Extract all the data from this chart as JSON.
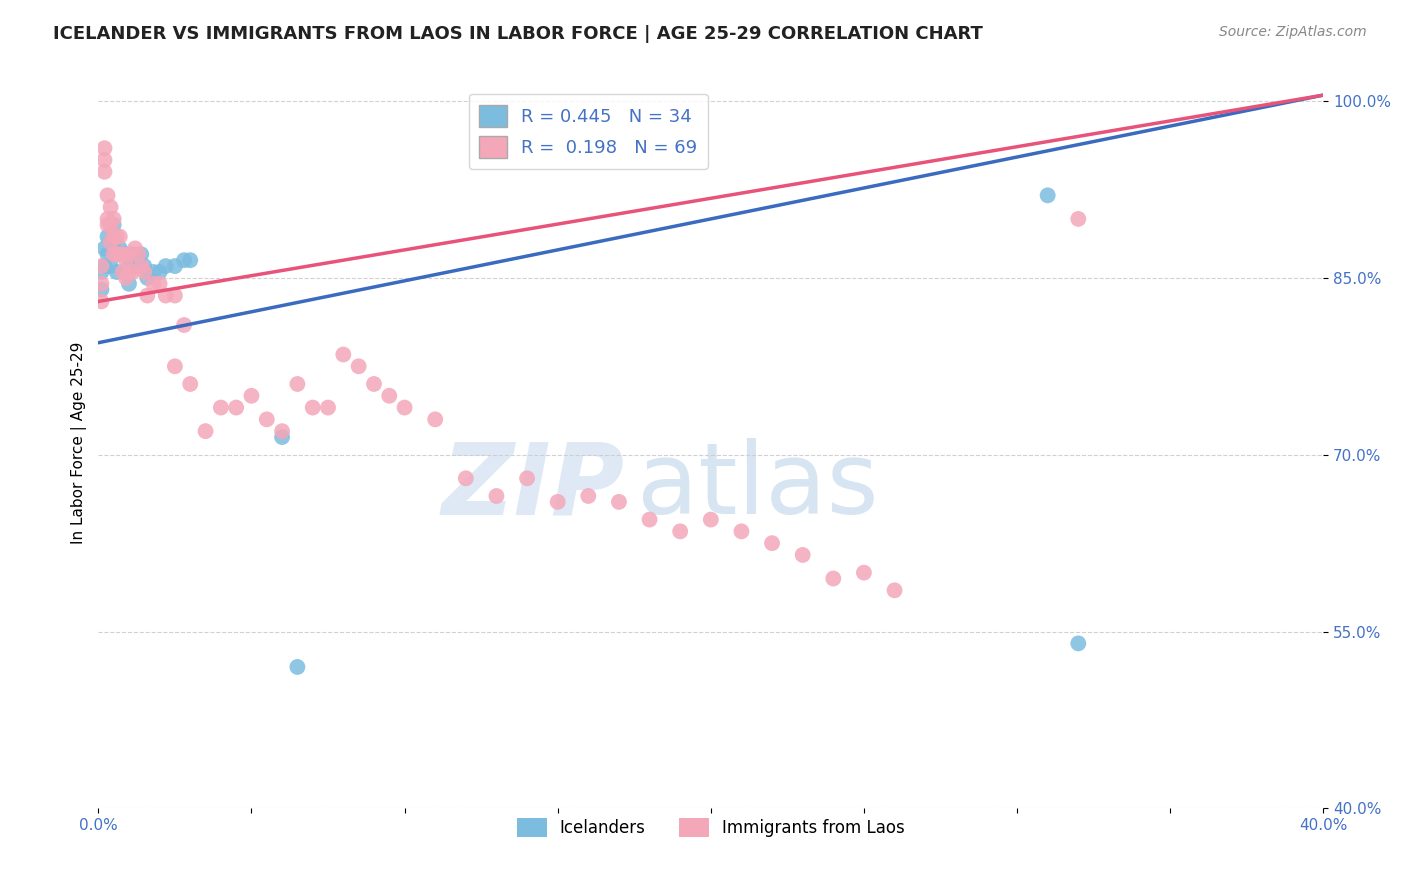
{
  "title": "ICELANDER VS IMMIGRANTS FROM LAOS IN LABOR FORCE | AGE 25-29 CORRELATION CHART",
  "source": "Source: ZipAtlas.com",
  "ylabel": "In Labor Force | Age 25-29",
  "xlim": [
    0.0,
    0.4
  ],
  "ylim": [
    0.4,
    1.02
  ],
  "yticks": [
    0.4,
    0.55,
    0.7,
    0.85,
    1.0
  ],
  "ytick_labels": [
    "40.0%",
    "55.0%",
    "70.0%",
    "85.0%",
    "100.0%"
  ],
  "xticks": [
    0.0,
    0.05,
    0.1,
    0.15,
    0.2,
    0.25,
    0.3,
    0.35,
    0.4
  ],
  "xtick_labels": [
    "0.0%",
    "",
    "",
    "",
    "",
    "",
    "",
    "",
    "40.0%"
  ],
  "icelanders": {
    "x": [
      0.001,
      0.001,
      0.002,
      0.002,
      0.003,
      0.003,
      0.004,
      0.004,
      0.005,
      0.005,
      0.006,
      0.006,
      0.007,
      0.008,
      0.008,
      0.009,
      0.01,
      0.01,
      0.011,
      0.012,
      0.013,
      0.014,
      0.015,
      0.016,
      0.018,
      0.02,
      0.022,
      0.025,
      0.028,
      0.03,
      0.06,
      0.065,
      0.31,
      0.32
    ],
    "y": [
      0.855,
      0.84,
      0.875,
      0.86,
      0.885,
      0.87,
      0.88,
      0.86,
      0.895,
      0.88,
      0.87,
      0.855,
      0.875,
      0.87,
      0.855,
      0.87,
      0.86,
      0.845,
      0.87,
      0.86,
      0.865,
      0.87,
      0.86,
      0.85,
      0.855,
      0.855,
      0.86,
      0.86,
      0.865,
      0.865,
      0.715,
      0.52,
      0.92,
      0.54
    ],
    "R": 0.445,
    "N": 34,
    "color": "#7BBCDF",
    "line_color": "#3A6BBF"
  },
  "laos": {
    "x": [
      0.001,
      0.001,
      0.001,
      0.002,
      0.002,
      0.002,
      0.003,
      0.003,
      0.003,
      0.004,
      0.004,
      0.004,
      0.005,
      0.005,
      0.005,
      0.006,
      0.006,
      0.007,
      0.007,
      0.008,
      0.008,
      0.009,
      0.009,
      0.01,
      0.01,
      0.011,
      0.012,
      0.013,
      0.014,
      0.015,
      0.016,
      0.018,
      0.02,
      0.022,
      0.025,
      0.025,
      0.028,
      0.03,
      0.035,
      0.04,
      0.045,
      0.05,
      0.055,
      0.06,
      0.065,
      0.07,
      0.075,
      0.08,
      0.085,
      0.09,
      0.095,
      0.1,
      0.11,
      0.12,
      0.13,
      0.14,
      0.15,
      0.16,
      0.17,
      0.18,
      0.19,
      0.2,
      0.21,
      0.22,
      0.23,
      0.24,
      0.25,
      0.26,
      0.32
    ],
    "y": [
      0.86,
      0.845,
      0.83,
      0.96,
      0.95,
      0.94,
      0.92,
      0.9,
      0.895,
      0.91,
      0.895,
      0.88,
      0.9,
      0.885,
      0.87,
      0.885,
      0.87,
      0.885,
      0.87,
      0.87,
      0.855,
      0.865,
      0.85,
      0.87,
      0.855,
      0.855,
      0.875,
      0.87,
      0.86,
      0.855,
      0.835,
      0.845,
      0.845,
      0.835,
      0.835,
      0.775,
      0.81,
      0.76,
      0.72,
      0.74,
      0.74,
      0.75,
      0.73,
      0.72,
      0.76,
      0.74,
      0.74,
      0.785,
      0.775,
      0.76,
      0.75,
      0.74,
      0.73,
      0.68,
      0.665,
      0.68,
      0.66,
      0.665,
      0.66,
      0.645,
      0.635,
      0.645,
      0.635,
      0.625,
      0.615,
      0.595,
      0.6,
      0.585,
      0.9
    ],
    "R": 0.198,
    "N": 69,
    "color": "#F4A7B9",
    "line_color": "#E8537A"
  },
  "watermark_zip": "ZIP",
  "watermark_atlas": "atlas",
  "title_color": "#222222",
  "tick_color": "#4472C4",
  "grid_color": "#CCCCCC",
  "background_color": "#FFFFFF"
}
